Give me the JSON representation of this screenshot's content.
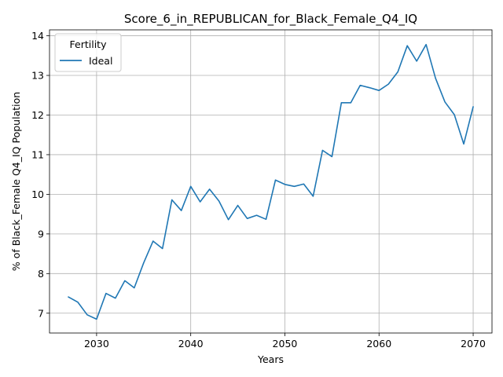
{
  "chart_data": {
    "type": "line",
    "title": "Score_6_in_REPUBLICAN_for_Black_Female_Q4_IQ",
    "xlabel": "Years",
    "ylabel": "% of Black_Female Q4_IQ Population",
    "xlim": [
      2025,
      2072
    ],
    "ylim": [
      6.5,
      14.15
    ],
    "xticks": [
      2030,
      2040,
      2050,
      2060,
      2070
    ],
    "yticks": [
      7,
      8,
      9,
      10,
      11,
      12,
      13,
      14
    ],
    "grid": true,
    "legend": {
      "title": "Fertility",
      "placement": "upper-left"
    },
    "series": [
      {
        "name": "Ideal",
        "color": "#1f77b4",
        "x": [
          2027,
          2028,
          2029,
          2030,
          2031,
          2032,
          2033,
          2034,
          2035,
          2036,
          2037,
          2038,
          2039,
          2040,
          2041,
          2042,
          2043,
          2044,
          2045,
          2046,
          2047,
          2048,
          2049,
          2050,
          2051,
          2052,
          2053,
          2054,
          2055,
          2056,
          2057,
          2058,
          2059,
          2060,
          2061,
          2062,
          2063,
          2064,
          2065,
          2066,
          2067,
          2068,
          2069,
          2070
        ],
        "y": [
          7.41,
          7.28,
          6.96,
          6.85,
          7.5,
          7.38,
          7.82,
          7.64,
          8.27,
          8.82,
          8.63,
          9.86,
          9.59,
          10.2,
          9.81,
          10.13,
          9.83,
          9.36,
          9.72,
          9.39,
          9.47,
          9.37,
          10.36,
          10.25,
          10.2,
          10.26,
          9.95,
          11.11,
          10.95,
          12.31,
          12.31,
          12.75,
          12.69,
          12.62,
          12.78,
          13.09,
          13.75,
          13.36,
          13.78,
          12.93,
          12.33,
          12.01,
          11.27,
          12.21
        ]
      }
    ]
  }
}
